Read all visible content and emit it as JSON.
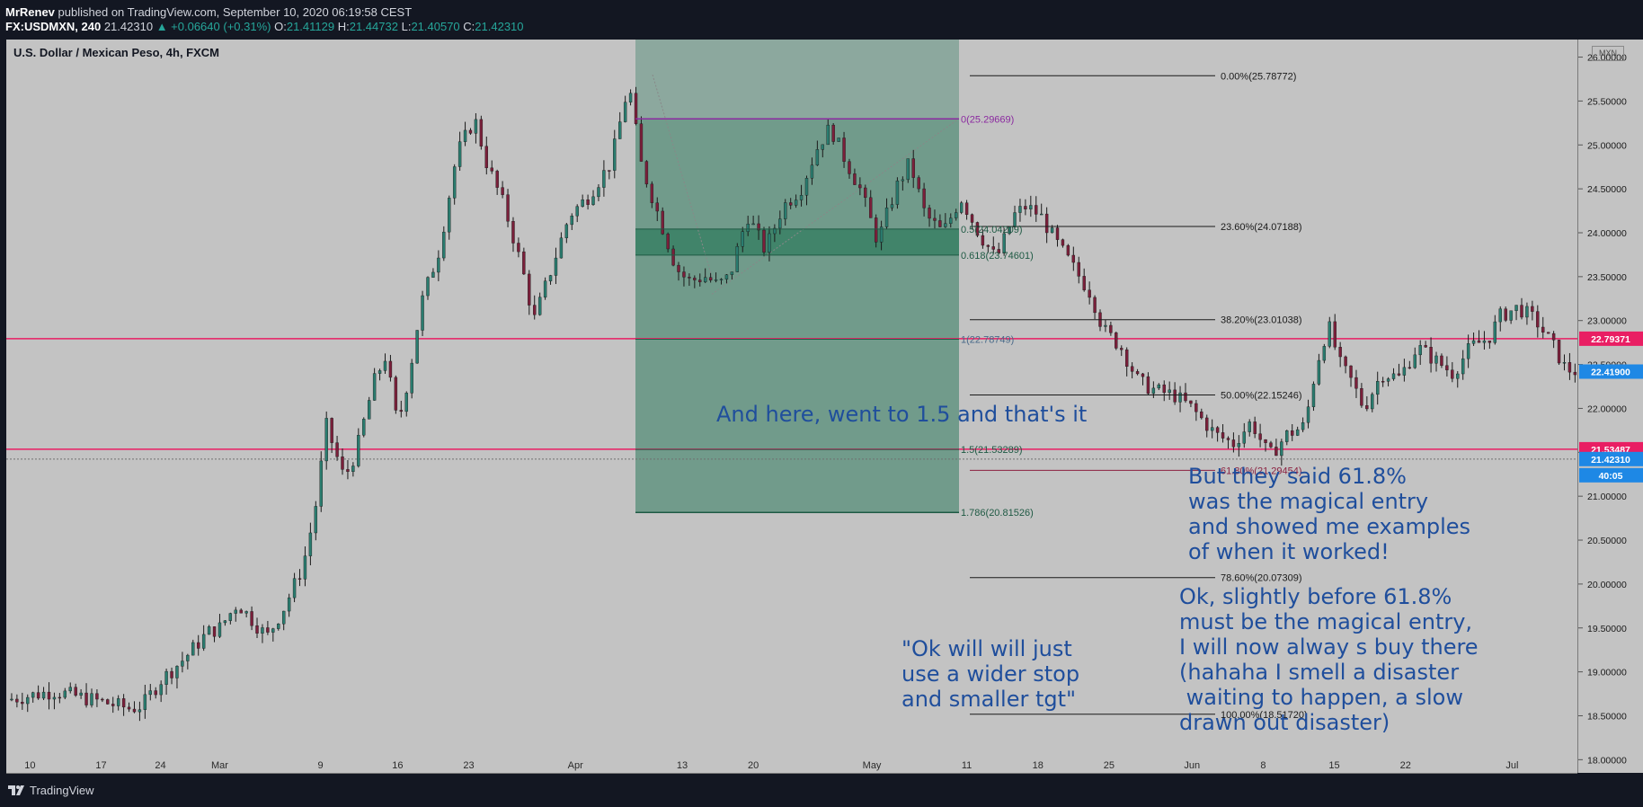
{
  "header": {
    "author": "MrRenev",
    "published_text": "published on TradingView.com, September 10, 2020 06:19:58 CEST",
    "symbol": "FX:USDMXN, 240",
    "last": "21.42310",
    "change": "▲ +0.06640 (+0.31%)",
    "o_label": "O:",
    "o": "21.41129",
    "h_label": "H:",
    "h": "21.44732",
    "l_label": "L:",
    "l": "21.40570",
    "c_label": "C:",
    "c": "21.42310"
  },
  "pane_title": "U.S. Dollar / Mexican Peso, 4h, FXCM",
  "currency_badge": "MXN",
  "footer": {
    "brand": "TradingView",
    "logo_icon": "tradingview-logo-icon"
  },
  "colors": {
    "pane_bg": "#c3c3c3",
    "frame": "#131722",
    "zone_green": "#2d7a5c",
    "zone_top": "#86a59a",
    "pink": "#e91e63",
    "annotation_blue": "#1f4e9c",
    "badge_blue": "#1e88e5"
  },
  "annotations": {
    "note1": "And here, went to 1.5 and that's it",
    "note2": "But they said 61.8%\nwas the magical entry\nand showed me examples\nof when it worked!",
    "note3": "Ok, slightly before 61.8%\nmust be the magical entry,\nI will now alway s buy there\n(hahaha I smell a disaster\n waiting to happen, a slow\ndrawn out disaster)",
    "note4": "\"Ok will will just\nuse a wider stop\nand smaller tgt\""
  },
  "chart_data": {
    "type": "candlestick",
    "title": "U.S. Dollar / Mexican Peso, 4h, FXCM",
    "xlabel": "",
    "ylabel": "",
    "ylim": [
      17.85,
      26.2
    ],
    "y_ticks": [
      "26.00000",
      "25.50000",
      "25.00000",
      "24.50000",
      "24.00000",
      "23.50000",
      "23.00000",
      "22.50000",
      "22.00000",
      "21.50000",
      "21.00000",
      "20.50000",
      "20.00000",
      "19.50000",
      "19.00000",
      "18.50000",
      "18.00000"
    ],
    "x_ticks": [
      {
        "label": "10",
        "t": 0.2
      },
      {
        "label": "17",
        "t": 0.8
      },
      {
        "label": "24",
        "t": 1.3
      },
      {
        "label": "Mar",
        "t": 1.8
      },
      {
        "label": "9",
        "t": 2.65
      },
      {
        "label": "16",
        "t": 3.3
      },
      {
        "label": "23",
        "t": 3.9
      },
      {
        "label": "Apr",
        "t": 4.8
      },
      {
        "label": "13",
        "t": 5.7
      },
      {
        "label": "20",
        "t": 6.3
      },
      {
        "label": "May",
        "t": 7.3
      },
      {
        "label": "11",
        "t": 8.1
      },
      {
        "label": "18",
        "t": 8.7
      },
      {
        "label": "25",
        "t": 9.3
      },
      {
        "label": "Jun",
        "t": 10.0
      },
      {
        "label": "8",
        "t": 10.6
      },
      {
        "label": "15",
        "t": 11.2
      },
      {
        "label": "22",
        "t": 11.8
      },
      {
        "label": "Jul",
        "t": 12.7
      }
    ],
    "price_path": [
      [
        0.0,
        18.68
      ],
      [
        0.4,
        18.78
      ],
      [
        0.8,
        18.66
      ],
      [
        1.05,
        18.58
      ],
      [
        1.15,
        18.62
      ],
      [
        1.3,
        18.9
      ],
      [
        1.5,
        19.15
      ],
      [
        1.7,
        19.45
      ],
      [
        1.8,
        19.5
      ],
      [
        1.95,
        19.78
      ],
      [
        2.1,
        19.55
      ],
      [
        2.2,
        19.4
      ],
      [
        2.35,
        19.75
      ],
      [
        2.5,
        20.2
      ],
      [
        2.6,
        20.8
      ],
      [
        2.7,
        21.8
      ],
      [
        2.85,
        21.2
      ],
      [
        2.95,
        21.5
      ],
      [
        3.1,
        22.3
      ],
      [
        3.2,
        22.6
      ],
      [
        3.3,
        21.8
      ],
      [
        3.4,
        22.4
      ],
      [
        3.5,
        23.2
      ],
      [
        3.65,
        23.8
      ],
      [
        3.8,
        24.9
      ],
      [
        3.95,
        25.3
      ],
      [
        4.05,
        24.8
      ],
      [
        4.2,
        24.3
      ],
      [
        4.35,
        23.6
      ],
      [
        4.45,
        23.0
      ],
      [
        4.6,
        23.6
      ],
      [
        4.75,
        24.2
      ],
      [
        4.9,
        24.4
      ],
      [
        5.1,
        24.8
      ],
      [
        5.25,
        25.7
      ],
      [
        5.35,
        24.8
      ],
      [
        5.5,
        24.2
      ],
      [
        5.65,
        23.6
      ],
      [
        5.75,
        23.45
      ],
      [
        5.9,
        23.5
      ],
      [
        6.0,
        23.4
      ],
      [
        6.1,
        23.5
      ],
      [
        6.25,
        24.2
      ],
      [
        6.4,
        23.8
      ],
      [
        6.55,
        24.3
      ],
      [
        6.7,
        24.5
      ],
      [
        6.85,
        25.0
      ],
      [
        6.95,
        25.2
      ],
      [
        7.05,
        24.9
      ],
      [
        7.2,
        24.5
      ],
      [
        7.35,
        23.9
      ],
      [
        7.5,
        24.5
      ],
      [
        7.62,
        24.8
      ],
      [
        7.75,
        24.2
      ],
      [
        7.9,
        24.0
      ],
      [
        8.05,
        24.4
      ],
      [
        8.2,
        24.0
      ],
      [
        8.35,
        23.7
      ],
      [
        8.5,
        24.2
      ],
      [
        8.6,
        24.3
      ],
      [
        8.72,
        24.2
      ],
      [
        8.85,
        23.9
      ],
      [
        9.0,
        23.6
      ],
      [
        9.15,
        23.3
      ],
      [
        9.25,
        22.9
      ],
      [
        9.4,
        22.7
      ],
      [
        9.55,
        22.3
      ],
      [
        9.7,
        22.2
      ],
      [
        9.85,
        22.15
      ],
      [
        10.0,
        22.0
      ],
      [
        10.2,
        21.7
      ],
      [
        10.35,
        21.6
      ],
      [
        10.5,
        21.85
      ],
      [
        10.65,
        21.45
      ],
      [
        10.8,
        21.7
      ],
      [
        10.95,
        21.8
      ],
      [
        11.05,
        22.5
      ],
      [
        11.15,
        22.95
      ],
      [
        11.25,
        22.5
      ],
      [
        11.35,
        22.3
      ],
      [
        11.45,
        22.0
      ],
      [
        11.6,
        22.4
      ],
      [
        11.75,
        22.35
      ],
      [
        11.9,
        22.7
      ],
      [
        12.05,
        22.55
      ],
      [
        12.2,
        22.4
      ],
      [
        12.35,
        22.7
      ],
      [
        12.5,
        22.8
      ],
      [
        12.6,
        23.05
      ],
      [
        12.75,
        23.15
      ],
      [
        12.9,
        23.0
      ],
      [
        13.05,
        22.7
      ],
      [
        13.15,
        22.45
      ],
      [
        13.25,
        22.42
      ]
    ],
    "t_max": 13.25,
    "fib_retracement": [
      {
        "level": "0.00%",
        "value": 25.78772,
        "label": "0.00%(25.78772)"
      },
      {
        "level": "23.60%",
        "value": 24.07188,
        "label": "23.60%(24.07188)"
      },
      {
        "level": "38.20%",
        "value": 23.01038,
        "label": "38.20%(23.01038)"
      },
      {
        "level": "50.00%",
        "value": 22.15246,
        "label": "50.00%(22.15246)"
      },
      {
        "level": "61.80%",
        "value": 21.29454,
        "label": "61.80%(21.29454)"
      },
      {
        "level": "78.60%",
        "value": 20.07309,
        "label": "78.60%(20.07309)"
      },
      {
        "level": "100.00%",
        "value": 18.5172,
        "label": "100.00%(18.51720)"
      }
    ],
    "fib_extension": [
      {
        "level": "0",
        "value": 25.29669,
        "label": "0(25.29669)"
      },
      {
        "level": "0.5",
        "value": 24.04209,
        "label": "0.5(24.04209)"
      },
      {
        "level": "0.618",
        "value": 23.74601,
        "label": "0.618(23.74601)"
      },
      {
        "level": "1",
        "value": 22.78749,
        "label": "1(22.78749)"
      },
      {
        "level": "1.5",
        "value": 21.53289,
        "label": "1.5(21.53289)"
      },
      {
        "level": "1.786",
        "value": 20.81526,
        "label": "1.786(20.81526)"
      }
    ],
    "horizontal_lines": [
      {
        "value": 22.79371,
        "label": "22.79371"
      },
      {
        "value": 21.53487,
        "label": "21.53487"
      }
    ],
    "price_badges": [
      {
        "value": 22.419,
        "label": "22.41900",
        "color": "#1e88e5"
      },
      {
        "value": 21.4231,
        "label": "21.42310",
        "color": "#1e88e5"
      },
      {
        "label": "40:05",
        "color": "#1e88e5"
      }
    ]
  }
}
